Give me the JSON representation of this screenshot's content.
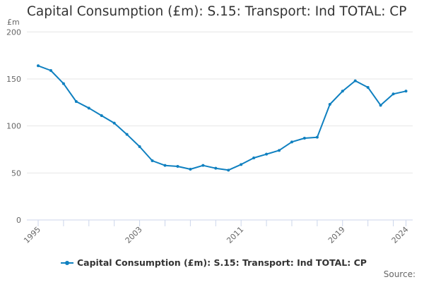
{
  "title": "Capital Consumption (£m): S.15: Transport: Ind TOTAL: CP",
  "y_unit_label": "£m",
  "legend_label": "Capital Consumption (£m): S.15: Transport: Ind TOTAL: CP",
  "source_label": "Source:",
  "colors": {
    "series": "#0f80c0",
    "grid": "#e6e6e6",
    "axis": "#ccd6eb"
  },
  "chart_data": {
    "type": "line",
    "title": "Capital Consumption (£m): S.15: Transport: Ind TOTAL: CP",
    "xlabel": "",
    "ylabel": "£m",
    "ylim": [
      0,
      200
    ],
    "yticks": [
      0,
      50,
      100,
      150,
      200
    ],
    "xtick_labels": [
      "1995",
      "2003",
      "2011",
      "2019",
      "2024"
    ],
    "grid": true,
    "legend_position": "bottom",
    "x": [
      1995,
      1996,
      1997,
      1998,
      1999,
      2000,
      2001,
      2002,
      2003,
      2004,
      2005,
      2006,
      2007,
      2008,
      2009,
      2010,
      2011,
      2012,
      2013,
      2014,
      2015,
      2016,
      2017,
      2018,
      2019,
      2020,
      2021,
      2022,
      2023,
      2024
    ],
    "series": [
      {
        "name": "Capital Consumption (£m): S.15: Transport: Ind TOTAL: CP",
        "values": [
          164,
          159,
          145,
          126,
          119,
          111,
          103,
          91,
          78,
          63,
          58,
          57,
          54,
          58,
          55,
          53,
          59,
          66,
          70,
          74,
          83,
          87,
          88,
          123,
          137,
          148,
          141,
          122,
          134,
          137
        ]
      }
    ]
  }
}
